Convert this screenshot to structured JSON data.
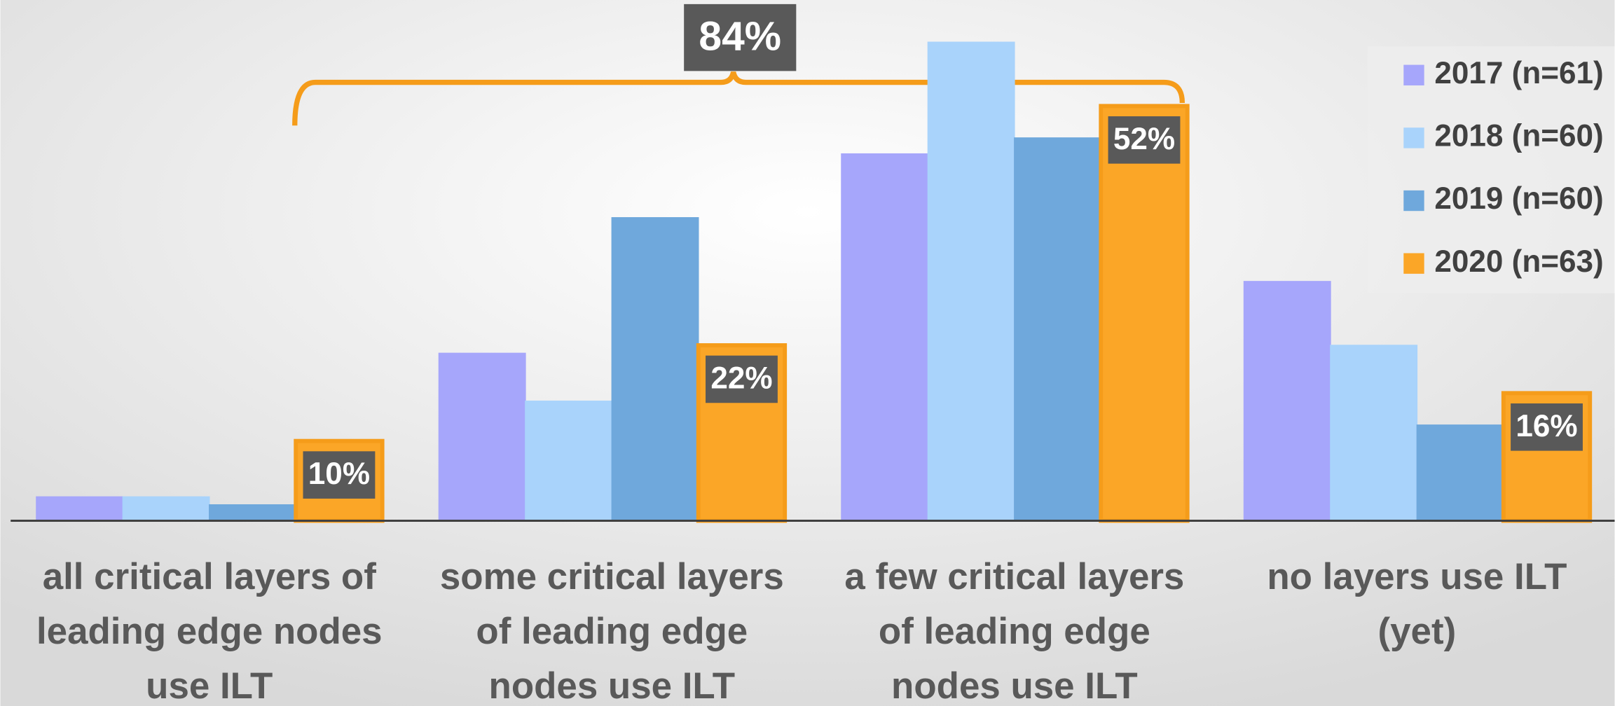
{
  "chart_data": {
    "type": "bar",
    "categories": [
      "all critical layers of leading edge nodes use ILT",
      "some critical layers of leading edge nodes use ILT",
      "a few critical layers of leading edge nodes use ILT",
      "no layers use ILT (yet)"
    ],
    "series": [
      {
        "name": "2017 (n=61)",
        "color": "#a6a6fb",
        "values": [
          3,
          21,
          46,
          30
        ]
      },
      {
        "name": "2018 (n=60)",
        "color": "#a9d3fb",
        "values": [
          3,
          15,
          60,
          22
        ]
      },
      {
        "name": "2019 (n=60)",
        "color": "#6fa8dc",
        "values": [
          2,
          38,
          48,
          12
        ]
      },
      {
        "name": "2020 (n=63)",
        "color": "#fba627",
        "values": [
          10,
          22,
          52,
          16
        ],
        "value_labels": [
          "10%",
          "22%",
          "52%",
          "16%"
        ]
      }
    ],
    "ylim": [
      0,
      65
    ],
    "annotation": "84%",
    "legend": "upper right"
  }
}
